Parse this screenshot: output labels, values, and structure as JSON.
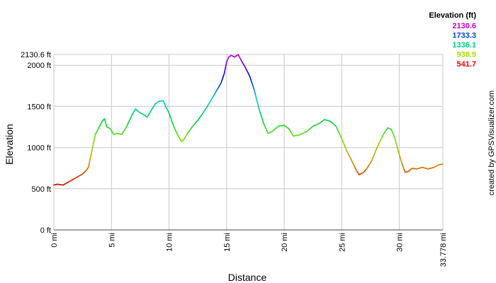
{
  "chart_data": {
    "type": "line",
    "xlabel": "Distance",
    "ylabel": "Elevation",
    "x_unit": "mi",
    "y_unit": "ft",
    "xlim": [
      0,
      33.778
    ],
    "ylim": [
      0,
      2130.6
    ],
    "x_ticks": [
      {
        "value": 0,
        "label": "0 mi"
      },
      {
        "value": 5,
        "label": "5 mi"
      },
      {
        "value": 10,
        "label": "10 mi"
      },
      {
        "value": 15,
        "label": "15 mi"
      },
      {
        "value": 20,
        "label": "20 mi"
      },
      {
        "value": 25,
        "label": "25 mi"
      },
      {
        "value": 30,
        "label": "30 mi"
      },
      {
        "value": 33.778,
        "label": "33.778 mi"
      }
    ],
    "y_ticks": [
      {
        "value": 0,
        "label": "0 ft"
      },
      {
        "value": 500,
        "label": "500 ft"
      },
      {
        "value": 1000,
        "label": "1000 ft"
      },
      {
        "value": 1500,
        "label": "1500 ft"
      },
      {
        "value": 2000,
        "label": "2000 ft"
      },
      {
        "value": 2130.6,
        "label": "2130.6 ft"
      }
    ],
    "grid": true,
    "legend": {
      "title": "Elevation (ft)",
      "placement": "top-right",
      "entries": [
        {
          "label": "2130.6",
          "color": "#cc00cc"
        },
        {
          "label": "1733.3",
          "color": "#0044ee"
        },
        {
          "label": "1336.1",
          "color": "#00cc88"
        },
        {
          "label": "938.9",
          "color": "#aadd00"
        },
        {
          "label": "541.7",
          "color": "#ee0000"
        }
      ]
    },
    "color_scale": {
      "min": 541.7,
      "max": 2130.6,
      "stops": [
        "#cc0000",
        "#dd8800",
        "#88dd00",
        "#00cc44",
        "#00cccc",
        "#0000ee",
        "#cc00cc"
      ]
    },
    "series": [
      {
        "x": [
          0,
          0.3,
          0.8,
          1.5,
          2.0,
          2.5,
          2.8,
          3.0,
          3.3,
          3.6,
          3.9,
          4.2,
          4.4,
          4.6,
          4.9,
          5.2,
          5.5,
          5.9,
          6.3,
          6.8,
          7.1,
          7.4,
          7.8,
          8.1,
          8.4,
          8.8,
          9.1,
          9.5,
          9.7,
          10.0,
          10.4,
          10.8,
          11.1,
          11.3,
          11.6,
          12.0,
          12.5,
          13.0,
          13.5,
          14.0,
          14.5,
          14.8,
          15.0,
          15.2,
          15.4,
          15.7,
          16.0,
          16.3,
          16.6,
          17.0,
          17.4,
          17.8,
          18.2,
          18.6,
          19.0,
          19.5,
          20.0,
          20.4,
          20.8,
          21.2,
          21.6,
          22.0,
          22.5,
          23.0,
          23.5,
          24.0,
          24.5,
          25.0,
          25.4,
          25.8,
          26.2,
          26.5,
          26.9,
          27.2,
          27.6,
          28.0,
          28.4,
          28.7,
          29.0,
          29.3,
          29.6,
          29.9,
          30.2,
          30.5,
          30.8,
          31.1,
          31.5,
          32.0,
          32.5,
          33.0,
          33.4,
          33.778
        ],
        "y": [
          545,
          555,
          545,
          600,
          640,
          680,
          720,
          760,
          960,
          1160,
          1240,
          1320,
          1350,
          1250,
          1230,
          1160,
          1170,
          1160,
          1250,
          1400,
          1470,
          1430,
          1400,
          1370,
          1440,
          1530,
          1560,
          1570,
          1500,
          1420,
          1260,
          1140,
          1070,
          1100,
          1170,
          1250,
          1330,
          1430,
          1540,
          1660,
          1780,
          1900,
          2040,
          2100,
          2120,
          2100,
          2130,
          2050,
          1980,
          1870,
          1700,
          1480,
          1300,
          1170,
          1200,
          1260,
          1270,
          1230,
          1140,
          1150,
          1170,
          1200,
          1260,
          1290,
          1340,
          1320,
          1260,
          1110,
          970,
          860,
          740,
          670,
          700,
          750,
          840,
          980,
          1100,
          1180,
          1240,
          1220,
          1120,
          960,
          820,
          700,
          710,
          750,
          740,
          760,
          740,
          760,
          790,
          800
        ]
      }
    ]
  },
  "credit": "created by GPSVisualizer.com"
}
